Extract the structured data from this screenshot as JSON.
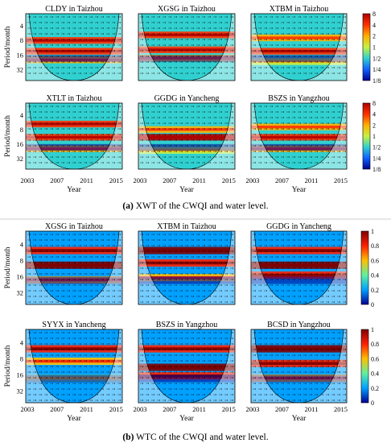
{
  "figure": {
    "caption_a_label": "(a)",
    "caption_a_text": " XWT of the CWQI and water level.",
    "caption_b_label": "(b)",
    "caption_b_text": " WTC of the CWQI and water level."
  },
  "chart_data": [
    {
      "type": "heatmap",
      "group": "a",
      "ylabel": "Period/month",
      "xlabel": "Year",
      "xticks": [
        "2003",
        "2007",
        "2011",
        "2015"
      ],
      "yticks": [
        "4",
        "8",
        "16",
        "32"
      ],
      "colorbar": {
        "ticks": [
          "8",
          "4",
          "2",
          "1",
          "1/2",
          "1/4",
          "1/8"
        ],
        "colors": [
          "#b00000",
          "#ff3000",
          "#ffb000",
          "#c8f040",
          "#30d0d0",
          "#1060ff",
          "#000090"
        ]
      },
      "panels": [
        {
          "title": "CLDY in Taizhou",
          "ridges": [
            [
              8,
              0.8
            ],
            [
              14,
              0.9
            ],
            [
              22,
              0.6
            ]
          ]
        },
        {
          "title": "XGSG in Taizhou",
          "ridges": [
            [
              6,
              0.9
            ],
            [
              13,
              0.8
            ],
            [
              20,
              0.6
            ]
          ]
        },
        {
          "title": "XTBM in Taizhou",
          "ridges": [
            [
              7,
              0.7
            ],
            [
              14,
              0.9
            ],
            [
              24,
              0.5
            ]
          ]
        },
        {
          "title": "XTLT in Taizhou",
          "ridges": [
            [
              6,
              0.8
            ],
            [
              12,
              0.9
            ],
            [
              22,
              0.6
            ]
          ]
        },
        {
          "title": "GGDG in Yancheng",
          "ridges": [
            [
              8,
              0.6
            ],
            [
              12,
              0.95
            ],
            [
              24,
              0.5
            ]
          ]
        },
        {
          "title": "BSZS in Yangzhou",
          "ridges": [
            [
              7,
              0.7
            ],
            [
              12,
              0.9
            ],
            [
              22,
              0.6
            ]
          ]
        }
      ]
    },
    {
      "type": "heatmap",
      "group": "b",
      "ylabel": "Period/month",
      "xlabel": "Year",
      "xticks": [
        "2003",
        "2007",
        "2011",
        "2015"
      ],
      "yticks": [
        "4",
        "8",
        "16",
        "32"
      ],
      "colorbar": {
        "ticks": [
          "1",
          "0.8",
          "0.6",
          "0.4",
          "0.2",
          "0"
        ],
        "colors": [
          "#800000",
          "#ff2000",
          "#ffc000",
          "#60f0a0",
          "#00a0ff",
          "#000090"
        ]
      },
      "panels": [
        {
          "title": "XGSG in Taizhou",
          "ridges": [
            [
              5,
              0.8
            ],
            [
              10,
              0.9
            ],
            [
              20,
              0.7
            ]
          ]
        },
        {
          "title": "XTBM in Taizhou",
          "ridges": [
            [
              5,
              0.9
            ],
            [
              9,
              0.8
            ],
            [
              18,
              0.7
            ]
          ]
        },
        {
          "title": "GGDG in Yancheng",
          "ridges": [
            [
              5,
              0.8
            ],
            [
              10,
              0.9
            ],
            [
              16,
              0.85
            ]
          ]
        },
        {
          "title": "SYYX in Yancheng",
          "ridges": [
            [
              5,
              0.8
            ],
            [
              9,
              0.7
            ],
            [
              20,
              0.5
            ]
          ]
        },
        {
          "title": "BSZS in Yangzhou",
          "ridges": [
            [
              5,
              0.8
            ],
            [
              12,
              0.9
            ],
            [
              18,
              0.85
            ]
          ]
        },
        {
          "title": "BCSD in Yangzhou",
          "ridges": [
            [
              5,
              0.9
            ],
            [
              10,
              0.8
            ],
            [
              20,
              0.6
            ]
          ]
        }
      ]
    }
  ]
}
